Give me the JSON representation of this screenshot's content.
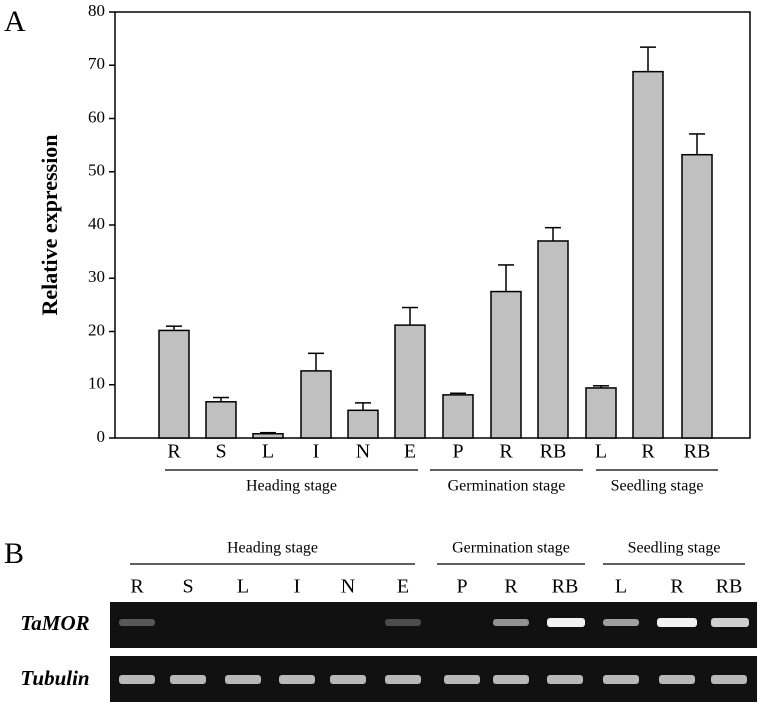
{
  "chart_data": {
    "type": "bar",
    "panel_label": "A",
    "y_label": "Relative expression",
    "categories": [
      "R",
      "S",
      "L",
      "I",
      "N",
      "E",
      "P",
      "R",
      "RB",
      "L",
      "R",
      "RB"
    ],
    "values": [
      20.2,
      6.8,
      0.8,
      12.6,
      5.2,
      21.2,
      8.1,
      27.5,
      37,
      9.4,
      68.8,
      53.2
    ],
    "errors": [
      0.8,
      0.8,
      0.2,
      3.3,
      1.4,
      3.3,
      0.3,
      5,
      2.5,
      0.4,
      4.6,
      3.9
    ],
    "color": "#c0c0c0",
    "groups": [
      "Heading stage",
      "Germination stage",
      "Seedling stage"
    ],
    "ylim": [
      0,
      80
    ],
    "yticks": [
      0,
      10,
      20,
      30,
      40,
      50,
      60,
      70,
      80
    ]
  },
  "gel": {
    "panel_label": "B",
    "groups": [
      "Heading stage",
      "Germination stage",
      "Seedling stage"
    ],
    "lanes": [
      "R",
      "S",
      "L",
      "I",
      "N",
      "E",
      "P",
      "R",
      "RB",
      "L",
      "R",
      "RB"
    ],
    "rows": [
      "TaMOR",
      "Tubulin"
    ]
  }
}
